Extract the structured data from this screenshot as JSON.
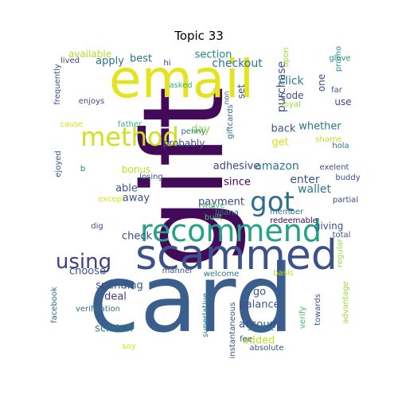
{
  "title": "Topic 33",
  "words": [
    {
      "text": "gift",
      "color": "#440a5a"
    },
    {
      "text": "card",
      "color": "#3a5f8c"
    },
    {
      "text": "email",
      "color": "#e3e31f"
    },
    {
      "text": "scammed",
      "color": "#3b528b"
    },
    {
      "text": "recommend",
      "color": "#25a18a"
    },
    {
      "text": "method",
      "color": "#cde11d"
    },
    {
      "text": "got",
      "color": "#2d6d8e"
    },
    {
      "text": "using",
      "color": "#424086"
    },
    {
      "text": "purchase",
      "color": "#3b528b"
    },
    {
      "text": "amazon",
      "color": "#2a788e"
    },
    {
      "text": "wallet",
      "color": "#2a788e"
    },
    {
      "text": "enter",
      "color": "#3b528b"
    },
    {
      "text": "adhesive",
      "color": "#414487"
    },
    {
      "text": "payment",
      "color": "#3e4989"
    },
    {
      "text": "checkout",
      "color": "#2c728e"
    },
    {
      "text": "section",
      "color": "#26828e"
    },
    {
      "text": "apply",
      "color": "#2c718e"
    },
    {
      "text": "best",
      "color": "#2c728e"
    },
    {
      "text": "available",
      "color": "#b5de2b"
    },
    {
      "text": "lived",
      "color": "#414487"
    },
    {
      "text": "hi",
      "color": "#46337e"
    },
    {
      "text": "frequently",
      "color": "#3b528b"
    },
    {
      "text": "enjoys",
      "color": "#414487"
    },
    {
      "text": "asked",
      "color": "#35b779"
    },
    {
      "text": "non",
      "color": "#3b528b"
    },
    {
      "text": "upon",
      "color": "#a0da39"
    },
    {
      "text": "glove",
      "color": "#21918c"
    },
    {
      "text": "far",
      "color": "#3b528b"
    },
    {
      "text": "promo",
      "color": "#21918c"
    },
    {
      "text": "loyal",
      "color": "#a0da39"
    },
    {
      "text": "click",
      "color": "#2a788e"
    },
    {
      "text": "set",
      "color": "#3b528b"
    },
    {
      "text": "one",
      "color": "#3e4989"
    },
    {
      "text": "code",
      "color": "#3e4989"
    },
    {
      "text": "use",
      "color": "#414487"
    },
    {
      "text": "cause",
      "color": "#d8e219"
    },
    {
      "text": "father",
      "color": "#35b779"
    },
    {
      "text": "day",
      "color": "#90d743"
    },
    {
      "text": "probably",
      "color": "#3b528b"
    },
    {
      "text": "penny",
      "color": "#2a788e"
    },
    {
      "text": "giftcards",
      "color": "#31688e"
    },
    {
      "text": "back",
      "color": "#3b528b"
    },
    {
      "text": "whether",
      "color": "#2c728e"
    },
    {
      "text": "get",
      "color": "#d8e219"
    },
    {
      "text": "shame",
      "color": "#bddf26"
    },
    {
      "text": "hola",
      "color": "#2a788e"
    },
    {
      "text": "buddy",
      "color": "#3b528b"
    },
    {
      "text": "exelent",
      "color": "#3e4989"
    },
    {
      "text": "partial",
      "color": "#3e4989"
    },
    {
      "text": "ejoyed",
      "color": "#3b528b"
    },
    {
      "text": "b",
      "color": "#2a788e"
    },
    {
      "text": "bonus",
      "color": "#c2df23"
    },
    {
      "text": "since",
      "color": "#440154"
    },
    {
      "text": "liliana",
      "color": "#2a788e"
    },
    {
      "text": "losing",
      "color": "#3b528b"
    },
    {
      "text": "able",
      "color": "#3b528b"
    },
    {
      "text": "away",
      "color": "#3b528b"
    },
    {
      "text": "except",
      "color": "#d8e219"
    },
    {
      "text": "built",
      "color": "#4ac16d"
    },
    {
      "text": "waive",
      "color": "#4ac16d"
    },
    {
      "text": "member",
      "color": "#2a788e"
    },
    {
      "text": "redeemable",
      "color": "#440154"
    },
    {
      "text": "dig",
      "color": "#3b528b"
    },
    {
      "text": "giving",
      "color": "#3b528b"
    },
    {
      "text": "total",
      "color": "#3b528b"
    },
    {
      "text": "regular",
      "color": "#a0da39"
    },
    {
      "text": "check",
      "color": "#3e4989"
    },
    {
      "text": "choose",
      "color": "#3b528b"
    },
    {
      "text": "manner",
      "color": "#3b528b"
    },
    {
      "text": "welcome",
      "color": "#2a788e"
    },
    {
      "text": "basis",
      "color": "#bddf26"
    },
    {
      "text": "facebook",
      "color": "#31688e"
    },
    {
      "text": "spending",
      "color": "#3b528b"
    },
    {
      "text": "deal",
      "color": "#443983"
    },
    {
      "text": "verification",
      "color": "#2c728e"
    },
    {
      "text": "scratch",
      "color": "#2a788e"
    },
    {
      "text": "soy",
      "color": "#d8e219"
    },
    {
      "text": "superlative",
      "color": "#2a788e"
    },
    {
      "text": "instantaneous",
      "color": "#3b528b"
    },
    {
      "text": "balance",
      "color": "#3b528b"
    },
    {
      "text": "account",
      "color": "#3b528b"
    },
    {
      "text": "go",
      "color": "#3b528b"
    },
    {
      "text": "added",
      "color": "#bddf26"
    },
    {
      "text": "seattle",
      "color": "#2a788e"
    },
    {
      "text": "fee",
      "color": "#3b528b"
    },
    {
      "text": "absolute",
      "color": "#3b528b"
    },
    {
      "text": "verify",
      "color": "#4ac16d"
    },
    {
      "text": "towards",
      "color": "#3b528b"
    },
    {
      "text": "advantage",
      "color": "#a0da39"
    }
  ]
}
